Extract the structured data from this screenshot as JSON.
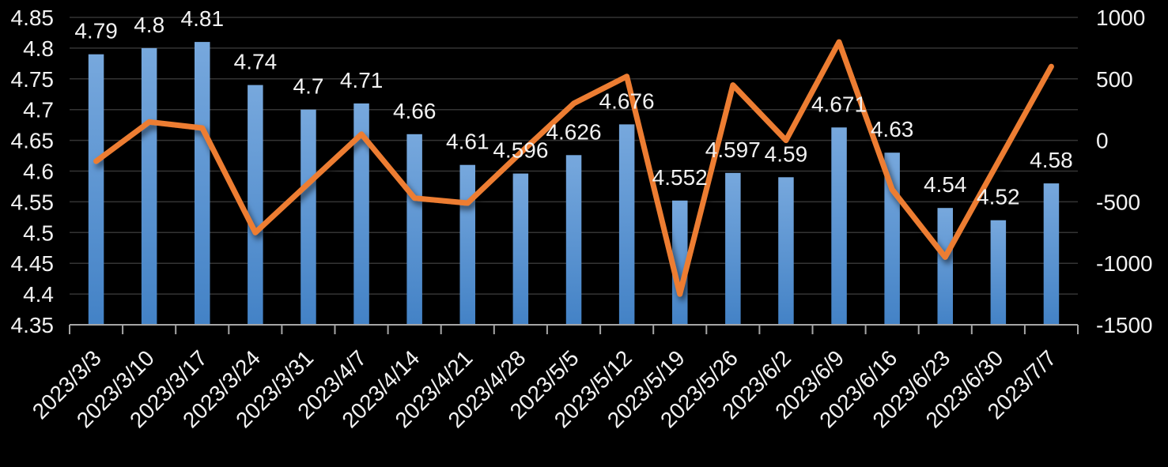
{
  "background_color": "#000000",
  "text_color": "#f2f2f2",
  "gridline_color": "#343434",
  "axis_line_color": "#a6a6a6",
  "chart_data": {
    "type": "bar",
    "title": "",
    "legend": false,
    "grid": true,
    "categories": [
      "2023/3/3",
      "2023/3/10",
      "2023/3/17",
      "2023/3/24",
      "2023/3/31",
      "2023/4/7",
      "2023/4/14",
      "2023/4/21",
      "2023/4/28",
      "2023/5/5",
      "2023/5/12",
      "2023/5/19",
      "2023/5/26",
      "2023/6/2",
      "2023/6/9",
      "2023/6/16",
      "2023/6/23",
      "2023/6/30",
      "2023/7/7"
    ],
    "series": [
      {
        "name": "primary-bars",
        "type": "bar",
        "axis": "left",
        "values": [
          4.79,
          4.8,
          4.81,
          4.74,
          4.7,
          4.71,
          4.66,
          4.61,
          4.596,
          4.626,
          4.676,
          4.552,
          4.597,
          4.59,
          4.671,
          4.63,
          4.54,
          4.52,
          4.58
        ],
        "data_labels": [
          "4.79",
          "4.8",
          "4.81",
          "4.74",
          "4.7",
          "4.71",
          "4.66",
          "4.61",
          "4.596",
          "4.626",
          "4.676",
          "4.552",
          "4.597",
          "4.59",
          "4.671",
          "4.63",
          "4.54",
          "4.52",
          "4.58"
        ],
        "bar_color_top": "#77a8dd",
        "bar_color_bottom": "#4382c6"
      },
      {
        "name": "secondary-line",
        "type": "line",
        "axis": "right",
        "values": [
          -170,
          150,
          100,
          -750,
          -350,
          50,
          -470,
          -510,
          -100,
          300,
          520,
          -1250,
          450,
          0,
          800,
          -400,
          -950,
          -175,
          600
        ],
        "values_are_estimates": true,
        "line_color": "#ED7D31"
      }
    ],
    "left_axis": {
      "min": 4.35,
      "max": 4.85,
      "step": 0.05,
      "tick_labels": [
        "4.85",
        "4.8",
        "4.75",
        "4.7",
        "4.65",
        "4.6",
        "4.55",
        "4.5",
        "4.45",
        "4.4",
        "4.35"
      ]
    },
    "right_axis": {
      "min": -1500,
      "max": 1000,
      "step": 500,
      "tick_labels": [
        "1000",
        "500",
        "0",
        "-500",
        "-1000",
        "-1500"
      ]
    }
  }
}
